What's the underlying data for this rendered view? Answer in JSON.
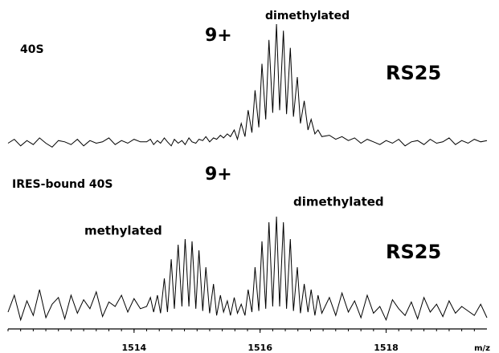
{
  "chart_data": [
    {
      "type": "line",
      "color": "#000000",
      "xlim": [
        1512,
        1519.6
      ],
      "ylim": [
        0,
        100
      ],
      "annotations": [
        "40S",
        "9+",
        "dimethylated",
        "RS25"
      ],
      "x": [
        1512.0,
        1512.1,
        1512.2,
        1512.3,
        1512.4,
        1512.5,
        1512.6,
        1512.7,
        1512.8,
        1512.9,
        1513.0,
        1513.1,
        1513.2,
        1513.3,
        1513.4,
        1513.5,
        1513.6,
        1513.7,
        1513.8,
        1513.9,
        1514.0,
        1514.1,
        1514.2,
        1514.26,
        1514.31,
        1514.37,
        1514.42,
        1514.48,
        1514.53,
        1514.59,
        1514.64,
        1514.7,
        1514.76,
        1514.81,
        1514.87,
        1514.92,
        1514.98,
        1515.03,
        1515.09,
        1515.14,
        1515.2,
        1515.26,
        1515.31,
        1515.37,
        1515.42,
        1515.48,
        1515.53,
        1515.59,
        1515.64,
        1515.7,
        1515.76,
        1515.81,
        1515.87,
        1515.92,
        1515.98,
        1516.03,
        1516.09,
        1516.14,
        1516.2,
        1516.26,
        1516.31,
        1516.37,
        1516.42,
        1516.48,
        1516.53,
        1516.59,
        1516.64,
        1516.7,
        1516.76,
        1516.81,
        1516.87,
        1516.92,
        1516.98,
        1517.1,
        1517.2,
        1517.3,
        1517.4,
        1517.5,
        1517.6,
        1517.7,
        1517.8,
        1517.9,
        1518.0,
        1518.1,
        1518.2,
        1518.3,
        1518.4,
        1518.5,
        1518.6,
        1518.7,
        1518.8,
        1518.9,
        1519.0,
        1519.1,
        1519.2,
        1519.3,
        1519.4,
        1519.5,
        1519.6
      ],
      "values": [
        10,
        13,
        8,
        12,
        9,
        14,
        10,
        7,
        12,
        11,
        9,
        13,
        8,
        12,
        10,
        11,
        14,
        9,
        12,
        10,
        13,
        11,
        11,
        13,
        9,
        12,
        10,
        14,
        11,
        8,
        13,
        10,
        12,
        9,
        14,
        11,
        10,
        13,
        12,
        15,
        11,
        14,
        13,
        16,
        14,
        17,
        15,
        20,
        13,
        25,
        15,
        35,
        18,
        50,
        22,
        70,
        28,
        88,
        33,
        100,
        35,
        95,
        32,
        82,
        30,
        60,
        25,
        42,
        20,
        28,
        17,
        20,
        15,
        16,
        13,
        15,
        12,
        14,
        10,
        13,
        11,
        9,
        12,
        10,
        13,
        8,
        11,
        12,
        9,
        13,
        10,
        11,
        14,
        9,
        12,
        10,
        13,
        11,
        12
      ]
    },
    {
      "type": "line",
      "color": "#000000",
      "xlim": [
        1512,
        1519.6
      ],
      "ylim": [
        0,
        100
      ],
      "xticks": [
        1514,
        1516,
        1518
      ],
      "x_label": "m/z",
      "annotations": [
        "IRES-bound 40S",
        "9+",
        "dimethylated",
        "methylated",
        "RS25"
      ],
      "x": [
        1512.0,
        1512.1,
        1512.2,
        1512.3,
        1512.4,
        1512.5,
        1512.6,
        1512.7,
        1512.8,
        1512.9,
        1513.0,
        1513.1,
        1513.2,
        1513.3,
        1513.4,
        1513.5,
        1513.6,
        1513.7,
        1513.8,
        1513.9,
        1514.0,
        1514.1,
        1514.2,
        1514.26,
        1514.31,
        1514.37,
        1514.42,
        1514.48,
        1514.53,
        1514.59,
        1514.64,
        1514.7,
        1514.76,
        1514.81,
        1514.87,
        1514.92,
        1514.98,
        1515.03,
        1515.09,
        1515.14,
        1515.2,
        1515.26,
        1515.31,
        1515.37,
        1515.42,
        1515.48,
        1515.53,
        1515.59,
        1515.64,
        1515.7,
        1515.76,
        1515.81,
        1515.87,
        1515.92,
        1515.98,
        1516.03,
        1516.09,
        1516.14,
        1516.2,
        1516.26,
        1516.31,
        1516.37,
        1516.42,
        1516.48,
        1516.53,
        1516.59,
        1516.64,
        1516.7,
        1516.76,
        1516.81,
        1516.87,
        1516.92,
        1516.98,
        1517.1,
        1517.2,
        1517.3,
        1517.4,
        1517.5,
        1517.6,
        1517.7,
        1517.8,
        1517.9,
        1518.0,
        1518.1,
        1518.2,
        1518.3,
        1518.4,
        1518.5,
        1518.6,
        1518.7,
        1518.8,
        1518.9,
        1519.0,
        1519.1,
        1519.2,
        1519.3,
        1519.4,
        1519.5,
        1519.6
      ],
      "values": [
        15,
        30,
        8,
        25,
        12,
        35,
        10,
        22,
        28,
        9,
        30,
        14,
        26,
        18,
        33,
        11,
        24,
        20,
        30,
        15,
        27,
        18,
        20,
        28,
        15,
        30,
        14,
        45,
        15,
        62,
        18,
        75,
        20,
        80,
        20,
        78,
        18,
        70,
        16,
        55,
        14,
        40,
        12,
        30,
        15,
        25,
        12,
        28,
        14,
        22,
        12,
        35,
        15,
        55,
        16,
        78,
        18,
        95,
        20,
        100,
        20,
        95,
        18,
        80,
        16,
        55,
        14,
        40,
        15,
        35,
        12,
        30,
        14,
        28,
        12,
        32,
        15,
        25,
        10,
        30,
        14,
        20,
        8,
        26,
        18,
        12,
        24,
        9,
        28,
        15,
        22,
        11,
        25,
        14,
        20,
        16,
        12,
        22,
        10
      ]
    }
  ]
}
